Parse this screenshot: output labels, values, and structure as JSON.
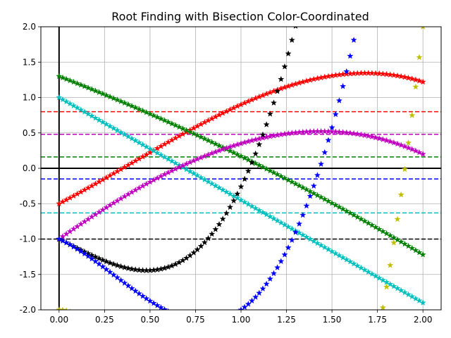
{
  "chart_data": {
    "type": "scatter",
    "title": "Root Finding with Bisection Color-Coordinated",
    "xlabel": "",
    "ylabel": "",
    "xlim": [
      -0.1,
      2.1
    ],
    "ylim": [
      -2.0,
      2.0
    ],
    "grid": true,
    "marker": "star",
    "x_ticks": [
      "0.00",
      "0.25",
      "0.50",
      "0.75",
      "1.00",
      "1.25",
      "1.50",
      "1.75",
      "2.00"
    ],
    "y_ticks": [
      "-2.0",
      "-1.5",
      "-1.0",
      "-0.5",
      "0.0",
      "0.5",
      "1.0",
      "1.5",
      "2.0"
    ],
    "x_range": [
      0.0,
      2.0
    ],
    "sample_count": 101,
    "series": [
      {
        "color": "#ff0000",
        "curve": "cubic",
        "coeffs": [
          -0.5,
          1.34,
          0.36,
          -0.3
        ],
        "hline": 0.8
      },
      {
        "color": "#008000",
        "curve": "cubic",
        "coeffs": [
          1.3,
          -1.0,
          -0.13,
          0.0
        ],
        "hline": 0.16
      },
      {
        "color": "#00bfbf",
        "curve": "cubic",
        "coeffs": [
          1.0,
          -1.45,
          0.0,
          0.0
        ],
        "hline": -0.63
      },
      {
        "color": "#bf00bf",
        "curve": "cubic",
        "coeffs": [
          -1.0,
          1.8,
          -0.3,
          -0.15
        ],
        "hline": 0.48
      },
      {
        "color": "#000000",
        "curve": "cubic",
        "coeffs": [
          -1.0,
          -1.26,
          -0.5,
          2.5
        ],
        "hline": -1.0
      },
      {
        "color": "#0000ff",
        "curve": "cubic",
        "coeffs": [
          -1.0,
          -1.2,
          -2.4,
          2.6
        ],
        "hline": -0.15
      },
      {
        "color": "#bfbf00",
        "curve": "cubic",
        "coeffs": [
          -2.0,
          0.0,
          -8.0,
          4.5
        ],
        "hline": null
      }
    ]
  }
}
